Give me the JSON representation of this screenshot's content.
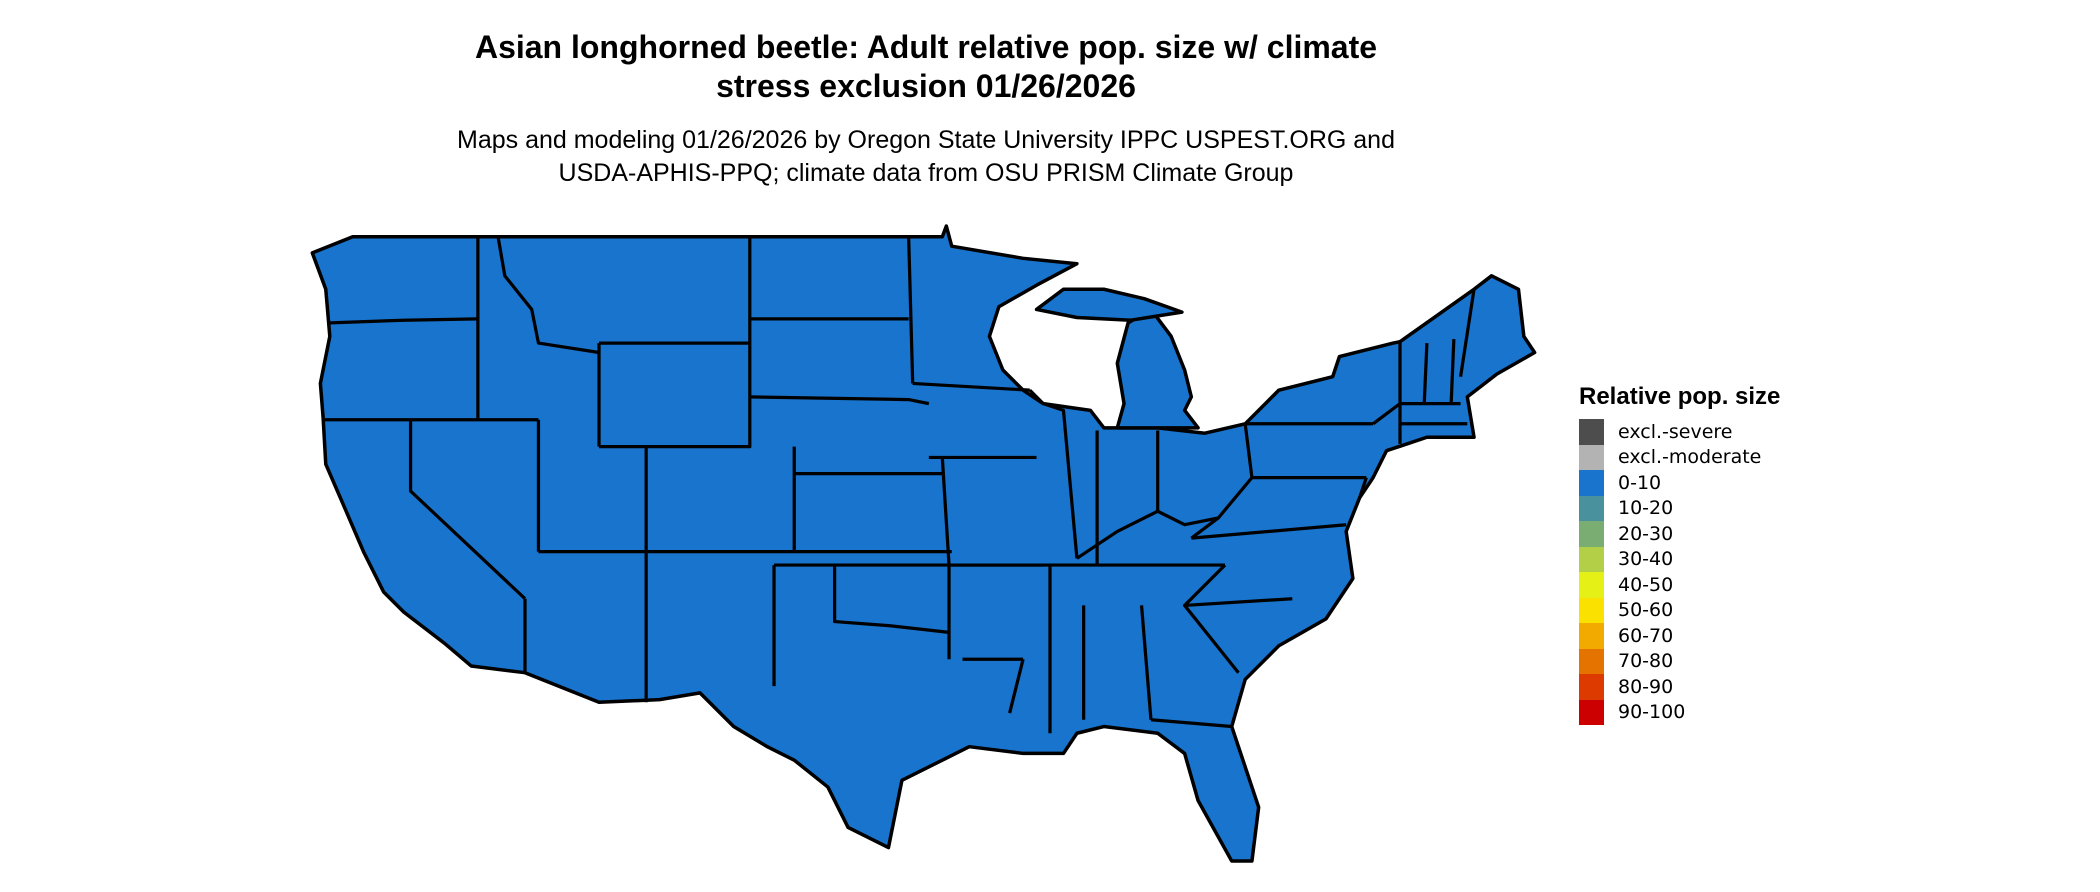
{
  "title": {
    "line1": "Asian longhorned beetle: Adult relative pop. size w/ climate",
    "line2": "stress exclusion 01/26/2026"
  },
  "subtitle": {
    "line1": "Maps and modeling 01/26/2026 by Oregon State University IPPC USPEST.ORG and",
    "line2": "USDA-APHIS-PPQ; climate data from OSU PRISM Climate Group"
  },
  "map": {
    "region": "contiguous United States",
    "shown_category": "0-10",
    "fill_color": "#1874cd",
    "border_color": "#000000"
  },
  "legend": {
    "title": "Relative pop. size",
    "items": [
      {
        "label": "excl.-severe",
        "color": "#4d4d4d"
      },
      {
        "label": "excl.-moderate",
        "color": "#b3b3b3"
      },
      {
        "label": "0-10",
        "color": "#1874cd"
      },
      {
        "label": "10-20",
        "color": "#4a919e"
      },
      {
        "label": "20-30",
        "color": "#7aad72"
      },
      {
        "label": "30-40",
        "color": "#b3cf47"
      },
      {
        "label": "40-50",
        "color": "#e5f016"
      },
      {
        "label": "50-60",
        "color": "#fae100"
      },
      {
        "label": "60-70",
        "color": "#f2a900"
      },
      {
        "label": "70-80",
        "color": "#e57300"
      },
      {
        "label": "80-90",
        "color": "#dd3a00"
      },
      {
        "label": "90-100",
        "color": "#cc0000"
      }
    ]
  }
}
